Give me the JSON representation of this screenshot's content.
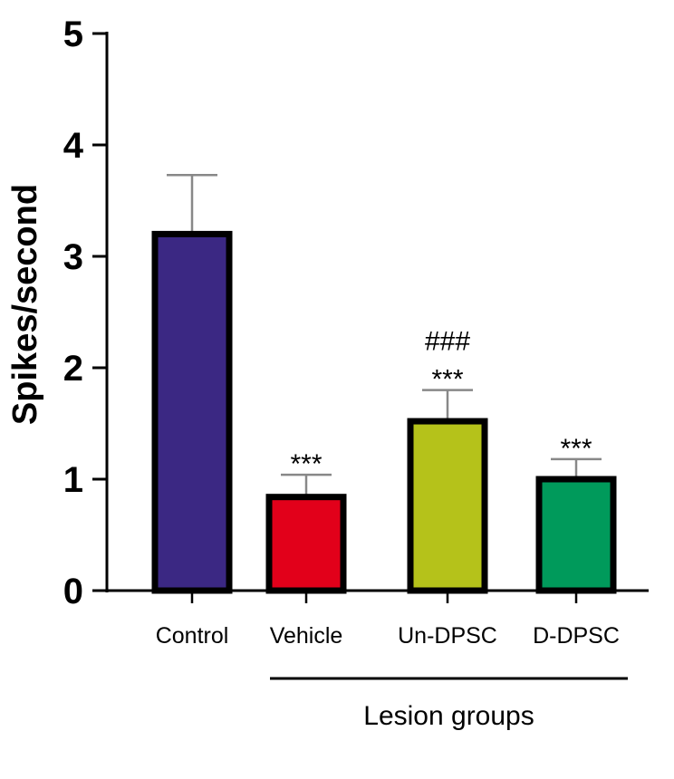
{
  "chart_data": {
    "type": "bar",
    "title": "",
    "xlabel": "",
    "ylabel": "Spikes/second",
    "ylim": [
      0,
      5
    ],
    "yticks": [
      "0",
      "1",
      "2",
      "3",
      "4",
      "5"
    ],
    "grid": false,
    "categories": [
      "Control",
      "Vehicle",
      "Un-DPSC",
      "D-DPSC"
    ],
    "values": [
      3.2,
      0.84,
      1.52,
      1.0
    ],
    "errors": [
      0.53,
      0.2,
      0.28,
      0.18
    ],
    "colors": [
      "#3b2883",
      "#e2001a",
      "#b5c21a",
      "#009a5b"
    ],
    "annotations": [
      {
        "category": "Vehicle",
        "lines": [
          "***"
        ]
      },
      {
        "category": "Un-DPSC",
        "lines": [
          "###",
          "***"
        ]
      },
      {
        "category": "D-DPSC",
        "lines": [
          "***"
        ]
      }
    ],
    "group_bracket": {
      "label": "Lesion groups",
      "from": "Vehicle",
      "to": "D-DPSC"
    }
  }
}
